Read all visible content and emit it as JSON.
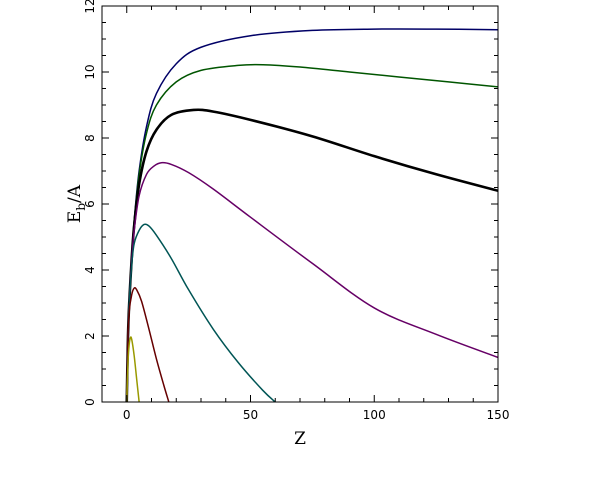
{
  "chart_data": {
    "type": "line",
    "xlabel": "Z",
    "ylabel_main": "E",
    "ylabel_sub": "b",
    "ylabel_tail": "/A",
    "xlim": [
      -10,
      150
    ],
    "ylim": [
      0,
      12
    ],
    "x_ticks": [
      0,
      50,
      100,
      150
    ],
    "y_ticks": [
      0,
      2,
      4,
      6,
      8,
      10,
      12
    ],
    "grid": false,
    "series": [
      {
        "color": "#000066",
        "width": 1.5,
        "points": [
          [
            0,
            0
          ],
          [
            0.5,
            2.0
          ],
          [
            1,
            3.0
          ],
          [
            2,
            4.4
          ],
          [
            3,
            5.5
          ],
          [
            5,
            7.0
          ],
          [
            8,
            8.35
          ],
          [
            12,
            9.35
          ],
          [
            20,
            10.25
          ],
          [
            30,
            10.75
          ],
          [
            50,
            11.1
          ],
          [
            75,
            11.26
          ],
          [
            100,
            11.3
          ],
          [
            125,
            11.3
          ],
          [
            150,
            11.28
          ]
        ]
      },
      {
        "color": "#005500",
        "width": 1.5,
        "points": [
          [
            0,
            0
          ],
          [
            0.5,
            2.0
          ],
          [
            1,
            3.0
          ],
          [
            2,
            4.4
          ],
          [
            3,
            5.45
          ],
          [
            5,
            6.9
          ],
          [
            8,
            8.15
          ],
          [
            12,
            9.0
          ],
          [
            20,
            9.7
          ],
          [
            30,
            10.05
          ],
          [
            45,
            10.2
          ],
          [
            55,
            10.22
          ],
          [
            70,
            10.15
          ],
          [
            90,
            10.0
          ],
          [
            110,
            9.85
          ],
          [
            130,
            9.7
          ],
          [
            150,
            9.55
          ]
        ]
      },
      {
        "color": "#000000",
        "width": 2.6,
        "points": [
          [
            0,
            0
          ],
          [
            0.5,
            2.0
          ],
          [
            1,
            3.0
          ],
          [
            2,
            4.35
          ],
          [
            3,
            5.35
          ],
          [
            5,
            6.6
          ],
          [
            8,
            7.6
          ],
          [
            12,
            8.25
          ],
          [
            18,
            8.7
          ],
          [
            27,
            8.85
          ],
          [
            35,
            8.8
          ],
          [
            50,
            8.55
          ],
          [
            75,
            8.05
          ],
          [
            100,
            7.45
          ],
          [
            125,
            6.9
          ],
          [
            150,
            6.4
          ]
        ]
      },
      {
        "color": "#660066",
        "width": 1.5,
        "points": [
          [
            0,
            0
          ],
          [
            0.5,
            2.0
          ],
          [
            1,
            3.0
          ],
          [
            2,
            4.3
          ],
          [
            3,
            5.2
          ],
          [
            5,
            6.25
          ],
          [
            8,
            6.9
          ],
          [
            11,
            7.15
          ],
          [
            14,
            7.25
          ],
          [
            18,
            7.2
          ],
          [
            25,
            6.95
          ],
          [
            35,
            6.45
          ],
          [
            50,
            5.6
          ],
          [
            75,
            4.2
          ],
          [
            100,
            2.85
          ],
          [
            125,
            2.05
          ],
          [
            150,
            1.35
          ]
        ]
      },
      {
        "color": "#005555",
        "width": 1.5,
        "points": [
          [
            0,
            0
          ],
          [
            0.5,
            2.0
          ],
          [
            1,
            3.0
          ],
          [
            2,
            4.15
          ],
          [
            3,
            4.8
          ],
          [
            5,
            5.2
          ],
          [
            7,
            5.38
          ],
          [
            9,
            5.33
          ],
          [
            12,
            5.05
          ],
          [
            18,
            4.35
          ],
          [
            25,
            3.4
          ],
          [
            35,
            2.2
          ],
          [
            45,
            1.2
          ],
          [
            55,
            0.35
          ],
          [
            60,
            0
          ]
        ]
      },
      {
        "color": "#660000",
        "width": 1.5,
        "points": [
          [
            0,
            0
          ],
          [
            0.5,
            2.0
          ],
          [
            1,
            2.75
          ],
          [
            2,
            3.25
          ],
          [
            3,
            3.45
          ],
          [
            4,
            3.4
          ],
          [
            6,
            3.05
          ],
          [
            9,
            2.2
          ],
          [
            12,
            1.3
          ],
          [
            15,
            0.5
          ],
          [
            17,
            0
          ]
        ]
      },
      {
        "color": "#999900",
        "width": 1.5,
        "points": [
          [
            0,
            0
          ],
          [
            0.5,
            1.2
          ],
          [
            1,
            1.75
          ],
          [
            1.5,
            1.95
          ],
          [
            2,
            1.9
          ],
          [
            3,
            1.4
          ],
          [
            4,
            0.7
          ],
          [
            5,
            0
          ]
        ]
      }
    ]
  }
}
